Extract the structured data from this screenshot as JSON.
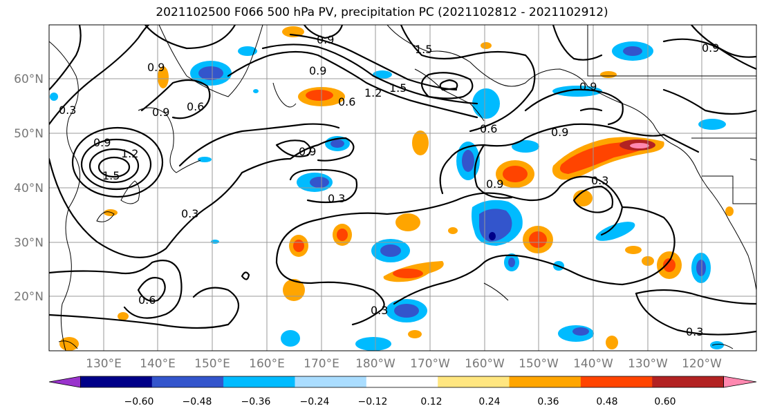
{
  "title": "2021102500 F066 500 hPa PV, precipitation PC (2021102812 - 2021102912)",
  "lat_labels": [
    "60°N",
    "50°N",
    "40°N",
    "30°N",
    "20°N"
  ],
  "lon_labels": [
    "130°E",
    "140°E",
    "150°E",
    "160°E",
    "170°E",
    "180°W",
    "170°W",
    "160°W",
    "150°W",
    "140°W",
    "130°W",
    "120°W"
  ],
  "contour_labels": [
    "0.9",
    "0.9",
    "1.5",
    "0.9",
    "0.6",
    "1.2",
    "1.5",
    "0.9",
    "0.6",
    "0.9",
    "1.5",
    "1.2",
    "0.9",
    "0.9",
    "0.6",
    "0.9",
    "0.9",
    "0.3",
    "0.9",
    "0.3",
    "0.3",
    "0.6",
    "0.3",
    "0.3",
    "0.3"
  ],
  "colorbar": {
    "ticks": [
      "−0.60",
      "−0.48",
      "−0.36",
      "−0.24",
      "−0.12",
      "0.12",
      "0.24",
      "0.36",
      "0.48",
      "0.60"
    ],
    "colors": [
      "#9933cc",
      "#000088",
      "#3355cc",
      "#00bbff",
      "#aaddff",
      "#ffffff",
      "#ffe680",
      "#ffa500",
      "#ff4400",
      "#b22222",
      "#ff88b0"
    ]
  },
  "colors": {
    "contour": "#000000",
    "grid": "#999999",
    "axis_label": "#777777"
  }
}
